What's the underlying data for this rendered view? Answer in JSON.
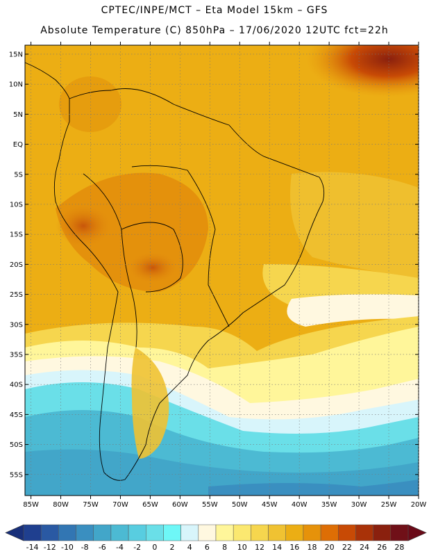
{
  "title": {
    "line1": "CPTEC/INPE/MCT –  Eta Model 15km – GFS",
    "line2": "Absolute Temperature (C) 850hPa – 17/06/2020 12UTC fct=22h"
  },
  "map": {
    "lon_range": [
      -86,
      -20
    ],
    "lat_range": [
      -58.5,
      16.5
    ],
    "lon_ticks": [
      {
        "value": -85,
        "label": "85W"
      },
      {
        "value": -80,
        "label": "80W"
      },
      {
        "value": -75,
        "label": "75W"
      },
      {
        "value": -70,
        "label": "70W"
      },
      {
        "value": -65,
        "label": "65W"
      },
      {
        "value": -60,
        "label": "60W"
      },
      {
        "value": -55,
        "label": "55W"
      },
      {
        "value": -50,
        "label": "50W"
      },
      {
        "value": -45,
        "label": "45W"
      },
      {
        "value": -40,
        "label": "40W"
      },
      {
        "value": -35,
        "label": "35W"
      },
      {
        "value": -30,
        "label": "30W"
      },
      {
        "value": -25,
        "label": "25W"
      },
      {
        "value": -20,
        "label": "20W"
      }
    ],
    "lat_ticks": [
      {
        "value": 15,
        "label": "15N"
      },
      {
        "value": 10,
        "label": "10N"
      },
      {
        "value": 5,
        "label": "5N"
      },
      {
        "value": 0,
        "label": "EQ"
      },
      {
        "value": -5,
        "label": "5S"
      },
      {
        "value": -10,
        "label": "10S"
      },
      {
        "value": -15,
        "label": "15S"
      },
      {
        "value": -20,
        "label": "20S"
      },
      {
        "value": -25,
        "label": "25S"
      },
      {
        "value": -30,
        "label": "30S"
      },
      {
        "value": -35,
        "label": "35S"
      },
      {
        "value": -40,
        "label": "40S"
      },
      {
        "value": -45,
        "label": "45S"
      },
      {
        "value": -50,
        "label": "50S"
      },
      {
        "value": -55,
        "label": "55S"
      }
    ]
  },
  "colorbar": {
    "labels": [
      "-14",
      "-12",
      "-10",
      "-8",
      "-6",
      "-4",
      "-2",
      "0",
      "2",
      "4",
      "6",
      "8",
      "10",
      "12",
      "14",
      "16",
      "18",
      "20",
      "22",
      "24",
      "26",
      "28"
    ],
    "colors": [
      "#1f3f8f",
      "#2a59a3",
      "#3276b3",
      "#3a8fc0",
      "#42a6c9",
      "#4cbad3",
      "#58cde0",
      "#6adfe8",
      "#6ef7f7",
      "#d8f5fb",
      "#fff8e0",
      "#fff69a",
      "#fbe870",
      "#f6d64e",
      "#f0c232",
      "#ecae14",
      "#e6920a",
      "#de6e05",
      "#c84a05",
      "#a93208",
      "#8a200e",
      "#701018"
    ],
    "low_arrow_color": "#182f7a",
    "high_arrow_color": "#6a0a18"
  }
}
